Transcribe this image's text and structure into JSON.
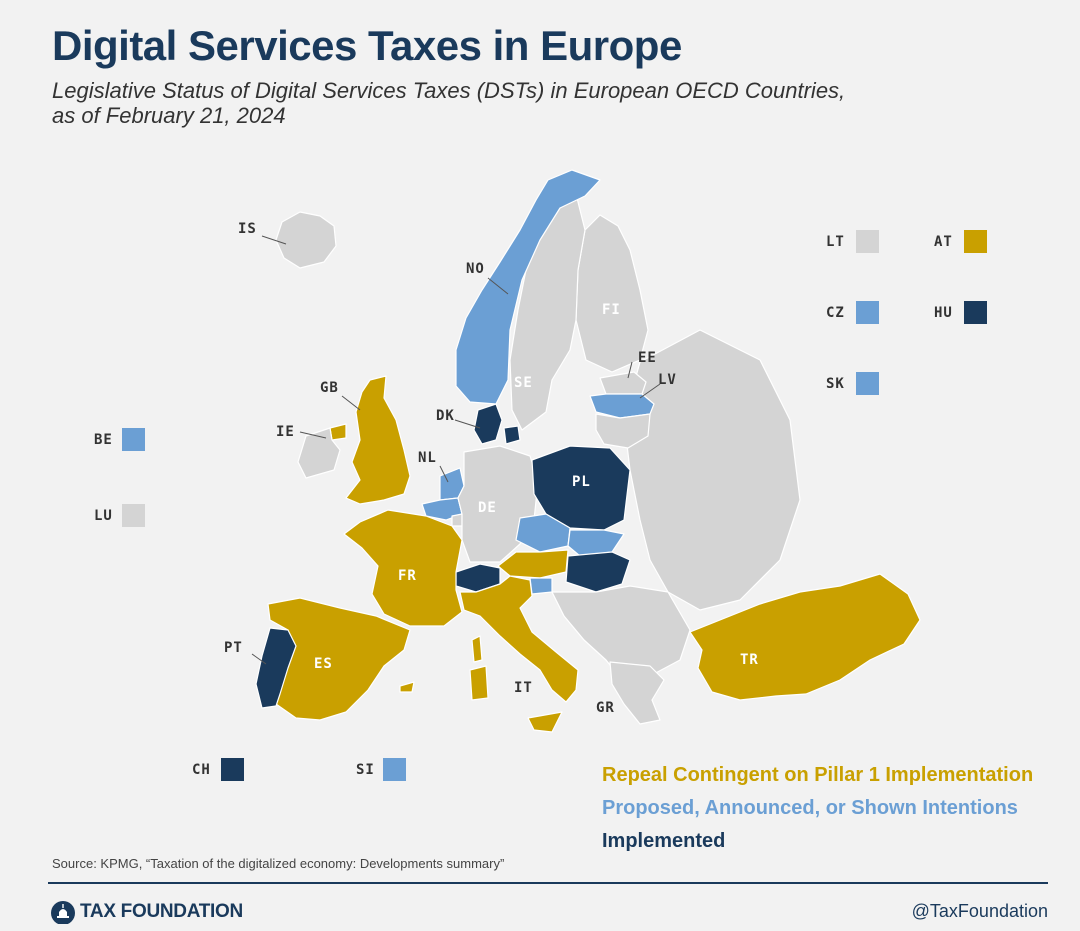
{
  "header": {
    "title": "Digital Services Taxes in Europe",
    "subtitle_line1": "Legislative Status of Digital Services Taxes (DSTs) in European OECD Countries,",
    "subtitle_line2": "as of February 21, 2024"
  },
  "colors": {
    "repeal": "#c9a000",
    "proposed": "#6b9fd4",
    "implemented": "#1a3a5c",
    "none": "#d4d4d4",
    "border": "#ffffff"
  },
  "map_labels": {
    "IS": "IS",
    "NO": "NO",
    "SE": "SE",
    "FI": "FI",
    "EE": "EE",
    "LV": "LV",
    "DK": "DK",
    "GB": "GB",
    "IE": "IE",
    "NL": "NL",
    "DE": "DE",
    "PL": "PL",
    "FR": "FR",
    "PT": "PT",
    "ES": "ES",
    "IT": "IT",
    "GR": "GR",
    "TR": "TR"
  },
  "small_countries": {
    "BE": "BE",
    "LU": "LU",
    "CH": "CH",
    "SI": "SI",
    "LT": "LT",
    "AT": "AT",
    "CZ": "CZ",
    "HU": "HU",
    "SK": "SK"
  },
  "legend": {
    "repeal": "Repeal Contingent on Pillar 1 Implementation",
    "proposed": "Proposed, Announced, or Shown Intentions",
    "implemented": "Implemented"
  },
  "footer": {
    "source": "Source:  KPMG, “Taxation of the digitalized economy: Developments summary”",
    "brand": "TAX FOUNDATION",
    "handle": "@TaxFoundation"
  }
}
